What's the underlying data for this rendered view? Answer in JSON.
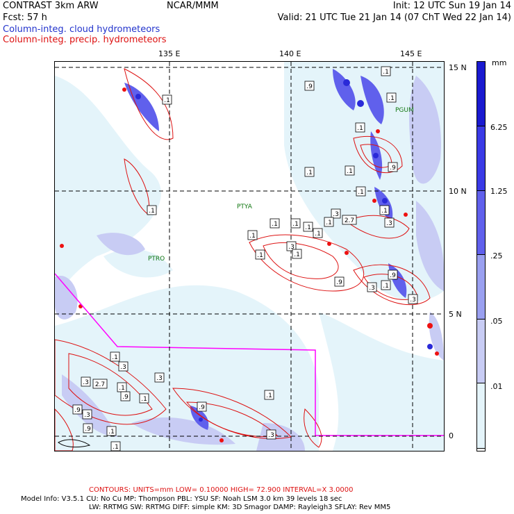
{
  "header": {
    "title": "CONTRAST  3km ARW",
    "org": "NCAR/MMM",
    "init": "Init: 12 UTC Sun 19 Jan 14",
    "fcst": "Fcst:   57 h",
    "valid": "Valid: 21 UTC Tue 21 Jan 14 (07 ChT Wed 22 Jan 14)",
    "legend_cloud": "Column-integ. cloud hydrometeors",
    "legend_precip": "Column-integ. precip. hydrometeors"
  },
  "map": {
    "lon_ticks": [
      "135 E",
      "140 E",
      "145 E"
    ],
    "lat_ticks": [
      "15 N",
      "10 N",
      "5 N",
      "0"
    ],
    "stations": [
      "PGUM",
      "PTYA",
      "PTRO"
    ],
    "contour_labels": [
      ".1",
      ".9",
      ".1",
      ".1",
      ".1",
      ".9",
      ".1",
      ".1",
      ".1",
      ".3",
      "2.7",
      ".1",
      ".1",
      ".1",
      ".1",
      ".1",
      ".3",
      ".1",
      ".1",
      ".1",
      ".3",
      ".1",
      ".9",
      ".1",
      ".3",
      ".9",
      ".3",
      ".1",
      ".1",
      ".3",
      ".3",
      ".1",
      ".3",
      "2.7",
      ".9",
      ".3",
      ".9",
      ".9",
      ".1",
      ".9",
      ".1",
      ".1",
      ".3",
      ".1"
    ]
  },
  "colorbar": {
    "unit": "mm",
    "labels": [
      "6.25",
      "1.25",
      ".25",
      ".05",
      ".01"
    ],
    "colors": [
      "#1a1ad0",
      "#3a3ae6",
      "#6060ec",
      "#9aa0f0",
      "#c8ccf4",
      "#e4f4fa",
      "#ffffff"
    ]
  },
  "footer": {
    "contours": "CONTOURS:  UNITS=mm  LOW= 0.10000      HIGH= 72.900      INTERVAL=X  3.0000",
    "model_line1": "Model Info: V3.5.1      CU: No Cu      MP: Thompson      PBL: YSU        SF: Noah LSM      3.0 km   39 levels    18 sec",
    "model_line2": "LW: RRTMG    SW: RRTMG   DIFF: simple KM: 3D Smagor DAMP: Rayleigh3   SFLAY: Rev MM5"
  }
}
